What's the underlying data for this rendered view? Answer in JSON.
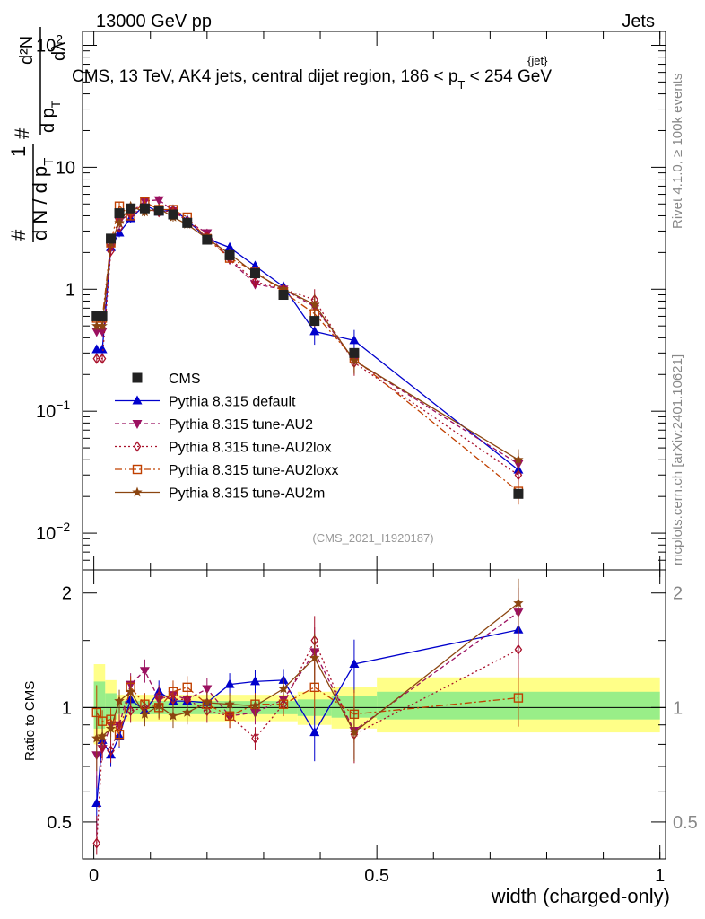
{
  "header": {
    "left": "13000 GeV pp",
    "right": "Jets"
  },
  "chart_title": {
    "prefix": "CMS, 13 TeV, AK4 jets, central dijet region, 186 < p",
    "sub": "T",
    "sup": "{jet}",
    "suffix": " < 254 GeV"
  },
  "side_labels": {
    "rivet": "Rivet 4.1.0, ≥ 100k events",
    "mcplots": "mcplots.cern.ch [arXiv:2401.10621]"
  },
  "analysis_id": "(CMS_2021_I1920187)",
  "ylabel_main": {
    "hash1": "#",
    "one": "1",
    "dN": "d N / d p",
    "dN_sub": "T",
    "hash2": "#",
    "d2N": "d²N",
    "dpt": "d p",
    "dpt_sub": "T",
    "dlambda": "dλ"
  },
  "ylabel_ratio": "Ratio to CMS",
  "xlabel": "width (charged-only)",
  "main_ticks": [
    {
      "value": 100,
      "label": "10",
      "sup": "2"
    },
    {
      "value": 10,
      "label": "10",
      "sup": ""
    },
    {
      "value": 1,
      "label": "1",
      "sup": ""
    },
    {
      "value": 0.1,
      "label": "10",
      "sup": "−1"
    },
    {
      "value": 0.01,
      "label": "10",
      "sup": "−2"
    }
  ],
  "ratio_ticks": [
    {
      "value": 2,
      "label": "2"
    },
    {
      "value": 1,
      "label": "1"
    },
    {
      "value": 0.5,
      "label": "0.5"
    }
  ],
  "x_ticks": [
    {
      "value": 0,
      "label": "0"
    },
    {
      "value": 0.5,
      "label": "0.5"
    },
    {
      "value": 1,
      "label": "1"
    }
  ],
  "chart_data": {
    "type": "line",
    "title": "CMS, 13 TeV, AK4 jets, central dijet region, 186 < pT{jet} < 254 GeV",
    "xlabel": "width (charged-only)",
    "ylabel": "1/N dN/dlambda",
    "y_scale": "log",
    "xlim": [
      -0.02,
      1.01
    ],
    "ylim": [
      0.005,
      130
    ],
    "ratio_ylim": [
      0.4,
      2.3
    ],
    "ratio_scale": "log",
    "x": [
      0.005,
      0.015,
      0.03,
      0.045,
      0.065,
      0.09,
      0.115,
      0.14,
      0.165,
      0.2,
      0.24,
      0.285,
      0.335,
      0.39,
      0.46,
      0.75
    ],
    "bin_edges": [
      0,
      0.01,
      0.02,
      0.04,
      0.05,
      0.08,
      0.1,
      0.13,
      0.15,
      0.18,
      0.22,
      0.26,
      0.31,
      0.36,
      0.42,
      0.5,
      1.0
    ],
    "series": [
      {
        "name": "CMS",
        "color": "#000000",
        "marker": "square",
        "values": [
          0.6,
          0.6,
          2.6,
          4.2,
          4.6,
          4.6,
          4.4,
          4.1,
          3.5,
          2.55,
          1.9,
          1.35,
          0.9,
          0.55,
          0.3,
          0.021
        ]
      },
      {
        "name": "Pythia 8.315 default",
        "color": "#0000cc",
        "marker": "triangle-up",
        "dash": "",
        "values": [
          0.32,
          0.32,
          2.2,
          2.9,
          3.8,
          4.9,
          4.3,
          4.5,
          3.7,
          2.6,
          2.2,
          1.55,
          1.05,
          0.45,
          0.38,
          0.033
        ]
      },
      {
        "name": "Pythia 8.315 tune-AU2",
        "color": "#9b1060",
        "marker": "triangle-down",
        "dash": "5,3",
        "values": [
          0.45,
          0.45,
          2.2,
          3.6,
          4.2,
          5.3,
          5.4,
          4.4,
          3.6,
          2.9,
          1.75,
          1.1,
          1.0,
          0.72,
          0.26,
          0.037
        ]
      },
      {
        "name": "Pythia 8.315 tune-AU2lox",
        "color": "#a8102a",
        "marker": "diamond",
        "dash": "2,3",
        "values": [
          0.27,
          0.27,
          2.05,
          3.2,
          4.1,
          4.6,
          4.3,
          4.4,
          3.6,
          2.7,
          1.8,
          1.15,
          1.0,
          0.82,
          0.25,
          0.03
        ]
      },
      {
        "name": "Pythia 8.315 tune-AU2loxx",
        "color": "#c04000",
        "marker": "square-open",
        "dash": "8,3,2,3",
        "values": [
          0.58,
          0.58,
          2.4,
          4.8,
          4.0,
          5.2,
          4.5,
          4.5,
          3.9,
          2.6,
          1.8,
          1.4,
          0.95,
          0.63,
          0.27,
          0.022
        ]
      },
      {
        "name": "Pythia 8.315 tune-AU2m",
        "color": "#8b4510",
        "marker": "star",
        "dash": "",
        "values": [
          0.5,
          0.5,
          2.4,
          3.5,
          4.8,
          4.3,
          4.6,
          3.9,
          3.4,
          2.6,
          1.95,
          1.35,
          1.0,
          0.75,
          0.26,
          0.04
        ]
      }
    ],
    "ratio": {
      "x": [
        0.005,
        0.015,
        0.03,
        0.045,
        0.065,
        0.09,
        0.115,
        0.14,
        0.165,
        0.2,
        0.24,
        0.285,
        0.335,
        0.39,
        0.46,
        0.75
      ],
      "band_green": [
        [
          0,
          0.02,
          0.88,
          1.17
        ],
        [
          0.02,
          0.04,
          0.93,
          1.09
        ],
        [
          0.04,
          0.36,
          0.96,
          1.04
        ],
        [
          0.36,
          0.42,
          0.95,
          1.05
        ],
        [
          0.42,
          0.5,
          0.94,
          1.07
        ],
        [
          0.5,
          1.0,
          0.93,
          1.1
        ]
      ],
      "band_yellow": [
        [
          0,
          0.02,
          0.8,
          1.3
        ],
        [
          0.02,
          0.04,
          0.86,
          1.18
        ],
        [
          0.04,
          0.36,
          0.92,
          1.08
        ],
        [
          0.36,
          0.42,
          0.9,
          1.1
        ],
        [
          0.42,
          0.5,
          0.88,
          1.13
        ],
        [
          0.5,
          1.0,
          0.86,
          1.2
        ]
      ],
      "series": [
        {
          "name": "Pythia 8.315 default",
          "values": [
            0.56,
            0.82,
            0.75,
            0.84,
            1.05,
            0.98,
            1.1,
            1.04,
            1.04,
            1.03,
            1.15,
            1.17,
            1.18,
            0.86,
            1.3,
            1.6
          ]
        },
        {
          "name": "Pythia 8.315 tune-AU2",
          "values": [
            0.75,
            0.78,
            0.9,
            0.9,
            1.15,
            1.25,
            1.05,
            1.08,
            1.05,
            1.12,
            0.95,
            0.97,
            1.05,
            1.4,
            0.87,
            1.78
          ]
        },
        {
          "name": "Pythia 8.315 tune-AU2lox",
          "values": [
            0.44,
            0.79,
            0.77,
            0.89,
            0.98,
            1.0,
            1.07,
            1.05,
            1.05,
            0.98,
            0.95,
            0.83,
            1.02,
            1.5,
            0.85,
            1.42
          ]
        },
        {
          "name": "Pythia 8.315 tune-AU2loxx",
          "values": [
            0.97,
            0.92,
            0.93,
            0.85,
            1.13,
            1.02,
            1.0,
            1.1,
            1.13,
            1.02,
            0.95,
            1.02,
            1.02,
            1.13,
            0.96,
            1.06
          ]
        },
        {
          "name": "Pythia 8.315 tune-AU2m",
          "values": [
            0.83,
            0.84,
            0.88,
            1.04,
            1.1,
            0.96,
            1.01,
            0.95,
            0.97,
            1.03,
            1.02,
            1.01,
            1.12,
            1.35,
            0.86,
            1.88
          ]
        }
      ]
    }
  }
}
